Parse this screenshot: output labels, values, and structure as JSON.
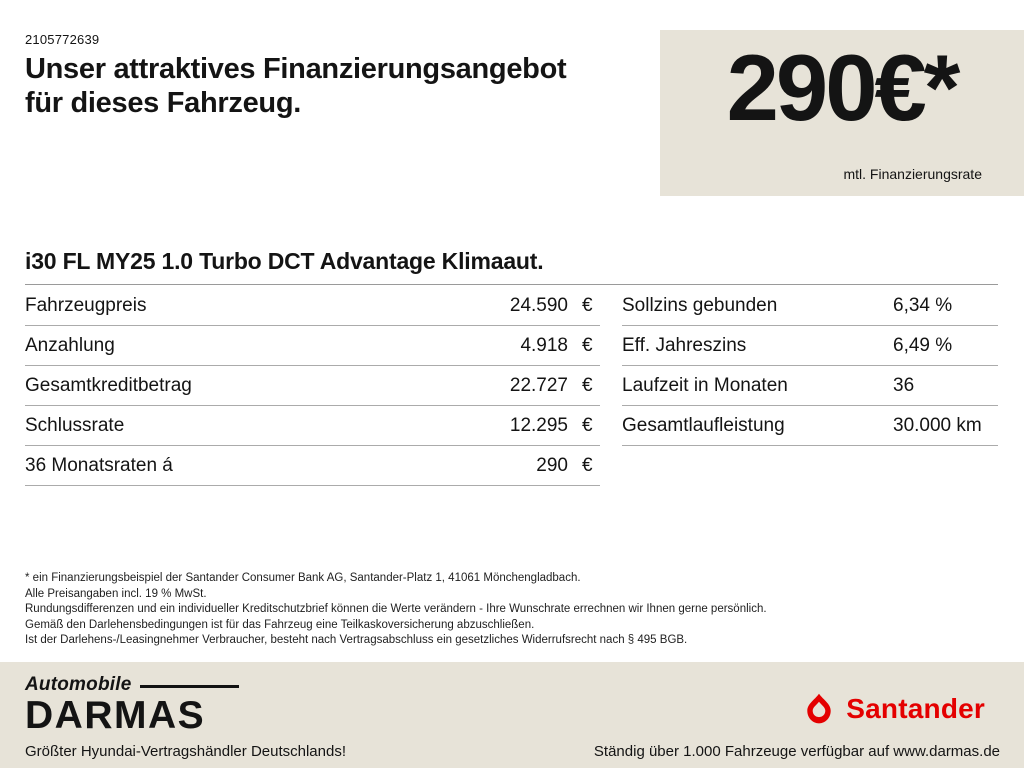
{
  "header": {
    "ref": "2105772639",
    "title_line1": "Unser attraktives Finanzierungsangebot",
    "title_line2": "für dieses Fahrzeug.",
    "rate_value": "290€*",
    "rate_caption": "mtl. Finanzierungsrate"
  },
  "vehicle": {
    "model": "i30 FL MY25 1.0 Turbo DCT Advantage Klimaaut."
  },
  "finance_table": {
    "left": [
      {
        "label": "Fahrzeugpreis",
        "value": "24.590",
        "unit": "€"
      },
      {
        "label": "Anzahlung",
        "value": "4.918",
        "unit": "€"
      },
      {
        "label": "Gesamtkreditbetrag",
        "value": "22.727",
        "unit": "€"
      },
      {
        "label": "Schlussrate",
        "value": "12.295",
        "unit": "€"
      },
      {
        "label": "36 Monatsraten á",
        "value": "290",
        "unit": "€"
      }
    ],
    "right": [
      {
        "label": "Sollzins gebunden",
        "value": "6,34 %"
      },
      {
        "label": "Eff. Jahreszins",
        "value": "6,49 %"
      },
      {
        "label": "Laufzeit in Monaten",
        "value": "36"
      },
      {
        "label": "Gesamtlaufleistung",
        "value": "30.000 km"
      }
    ]
  },
  "disclaimer": {
    "lines": [
      "* ein Finanzierungsbeispiel der Santander Consumer Bank AG, Santander-Platz 1, 41061 Mönchengladbach.",
      "Alle Preisangaben incl. 19 % MwSt.",
      "Rundungsdifferenzen und ein individueller Kreditschutzbrief können die Werte verändern - Ihre Wunschrate errechnen wir Ihnen gerne persönlich.",
      "Gemäß den Darlehensbedingungen ist für das Fahrzeug eine Teilkaskoversicherung abzuschließen.",
      "Ist der Darlehens-/Leasingnehmer Verbraucher, besteht nach Vertragsabschluss ein gesetzliches Widerrufsrecht nach § 495 BGB."
    ]
  },
  "footer": {
    "darmas_top": "Automobile",
    "darmas_name": "DARMAS",
    "santander_name": "Santander",
    "flame_icon": "santander-flame-icon",
    "left_tagline": "Größter Hyundai-Vertragshändler Deutschlands!",
    "right_tagline": "Ständig über 1.000 Fahrzeuge verfügbar auf www.darmas.de"
  },
  "colors": {
    "beige": "#e7e3d8",
    "santander_red": "#e40000",
    "text": "#141414"
  }
}
